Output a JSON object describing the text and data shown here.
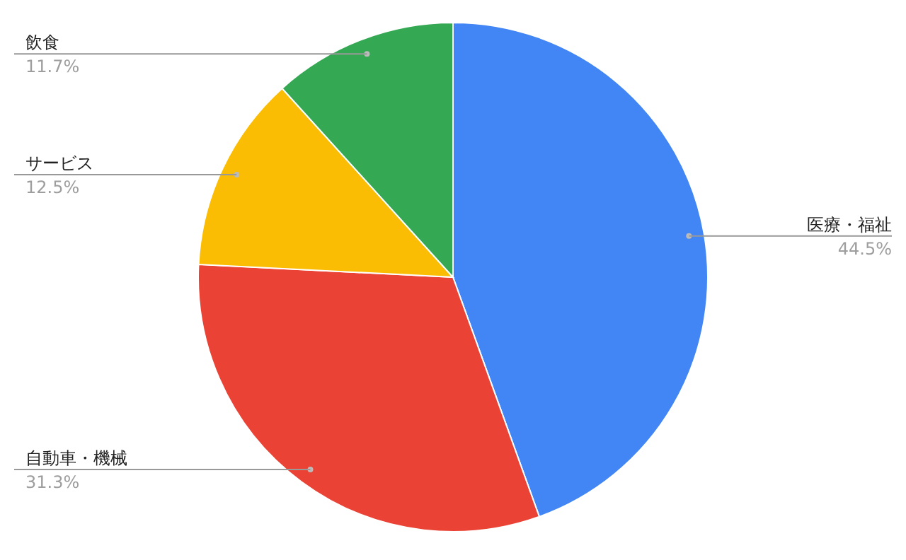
{
  "chart_data": {
    "type": "pie",
    "categories": [
      "医療・福祉",
      "自動車・機械",
      "サービス",
      "飲食"
    ],
    "values": [
      44.5,
      31.3,
      12.5,
      11.7
    ],
    "value_labels": [
      "44.5%",
      "31.3%",
      "12.5%",
      "11.7%"
    ],
    "colors": [
      "#4285f4",
      "#ea4335",
      "#fbbc04",
      "#34a853"
    ]
  }
}
